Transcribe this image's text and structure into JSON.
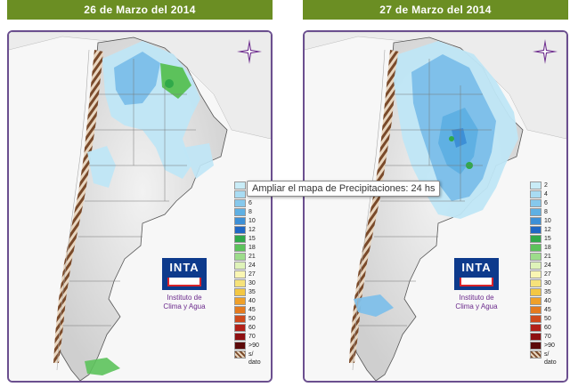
{
  "panels": [
    {
      "title": "26 de Marzo del 2014"
    },
    {
      "title": "27 de Marzo del 2014"
    }
  ],
  "legend": {
    "items": [
      {
        "label": "2",
        "color": "#c9ecf7"
      },
      {
        "label": "4",
        "color": "#a9dcf3"
      },
      {
        "label": "6",
        "color": "#86c8ec"
      },
      {
        "label": "8",
        "color": "#5fb0e3"
      },
      {
        "label": "10",
        "color": "#3d8fd6"
      },
      {
        "label": "12",
        "color": "#2067c4"
      },
      {
        "label": "15",
        "color": "#30a94a"
      },
      {
        "label": "18",
        "color": "#5cc25b"
      },
      {
        "label": "21",
        "color": "#9ddc8b"
      },
      {
        "label": "24",
        "color": "#dff3b9"
      },
      {
        "label": "27",
        "color": "#faf6b3"
      },
      {
        "label": "30",
        "color": "#f6e27a"
      },
      {
        "label": "35",
        "color": "#f3c743"
      },
      {
        "label": "40",
        "color": "#efa02a"
      },
      {
        "label": "45",
        "color": "#e47a1f"
      },
      {
        "label": "50",
        "color": "#cf4a1c"
      },
      {
        "label": "60",
        "color": "#b32119"
      },
      {
        "label": "70",
        "color": "#8e1012"
      },
      {
        "label": ">90",
        "color": "#5c0a0a"
      },
      {
        "label": "s/ dato",
        "color": "#7a4a2a"
      }
    ]
  },
  "logo": {
    "text": "INTA",
    "caption_line1": "Instituto de",
    "caption_line2": "Clima y Agua"
  },
  "tooltip": {
    "text": "Ampliar el mapa de Precipitaciones: 24 hs"
  },
  "colors": {
    "title_bar": "#6b8e23",
    "frame": "#6b4f8f",
    "land": "#e9e9e9",
    "rain_light": "#bfe6f6",
    "rain_mid": "#7fc0ea",
    "rain_heavy": "#3d8fd6",
    "rain_green": "#30a94a"
  }
}
